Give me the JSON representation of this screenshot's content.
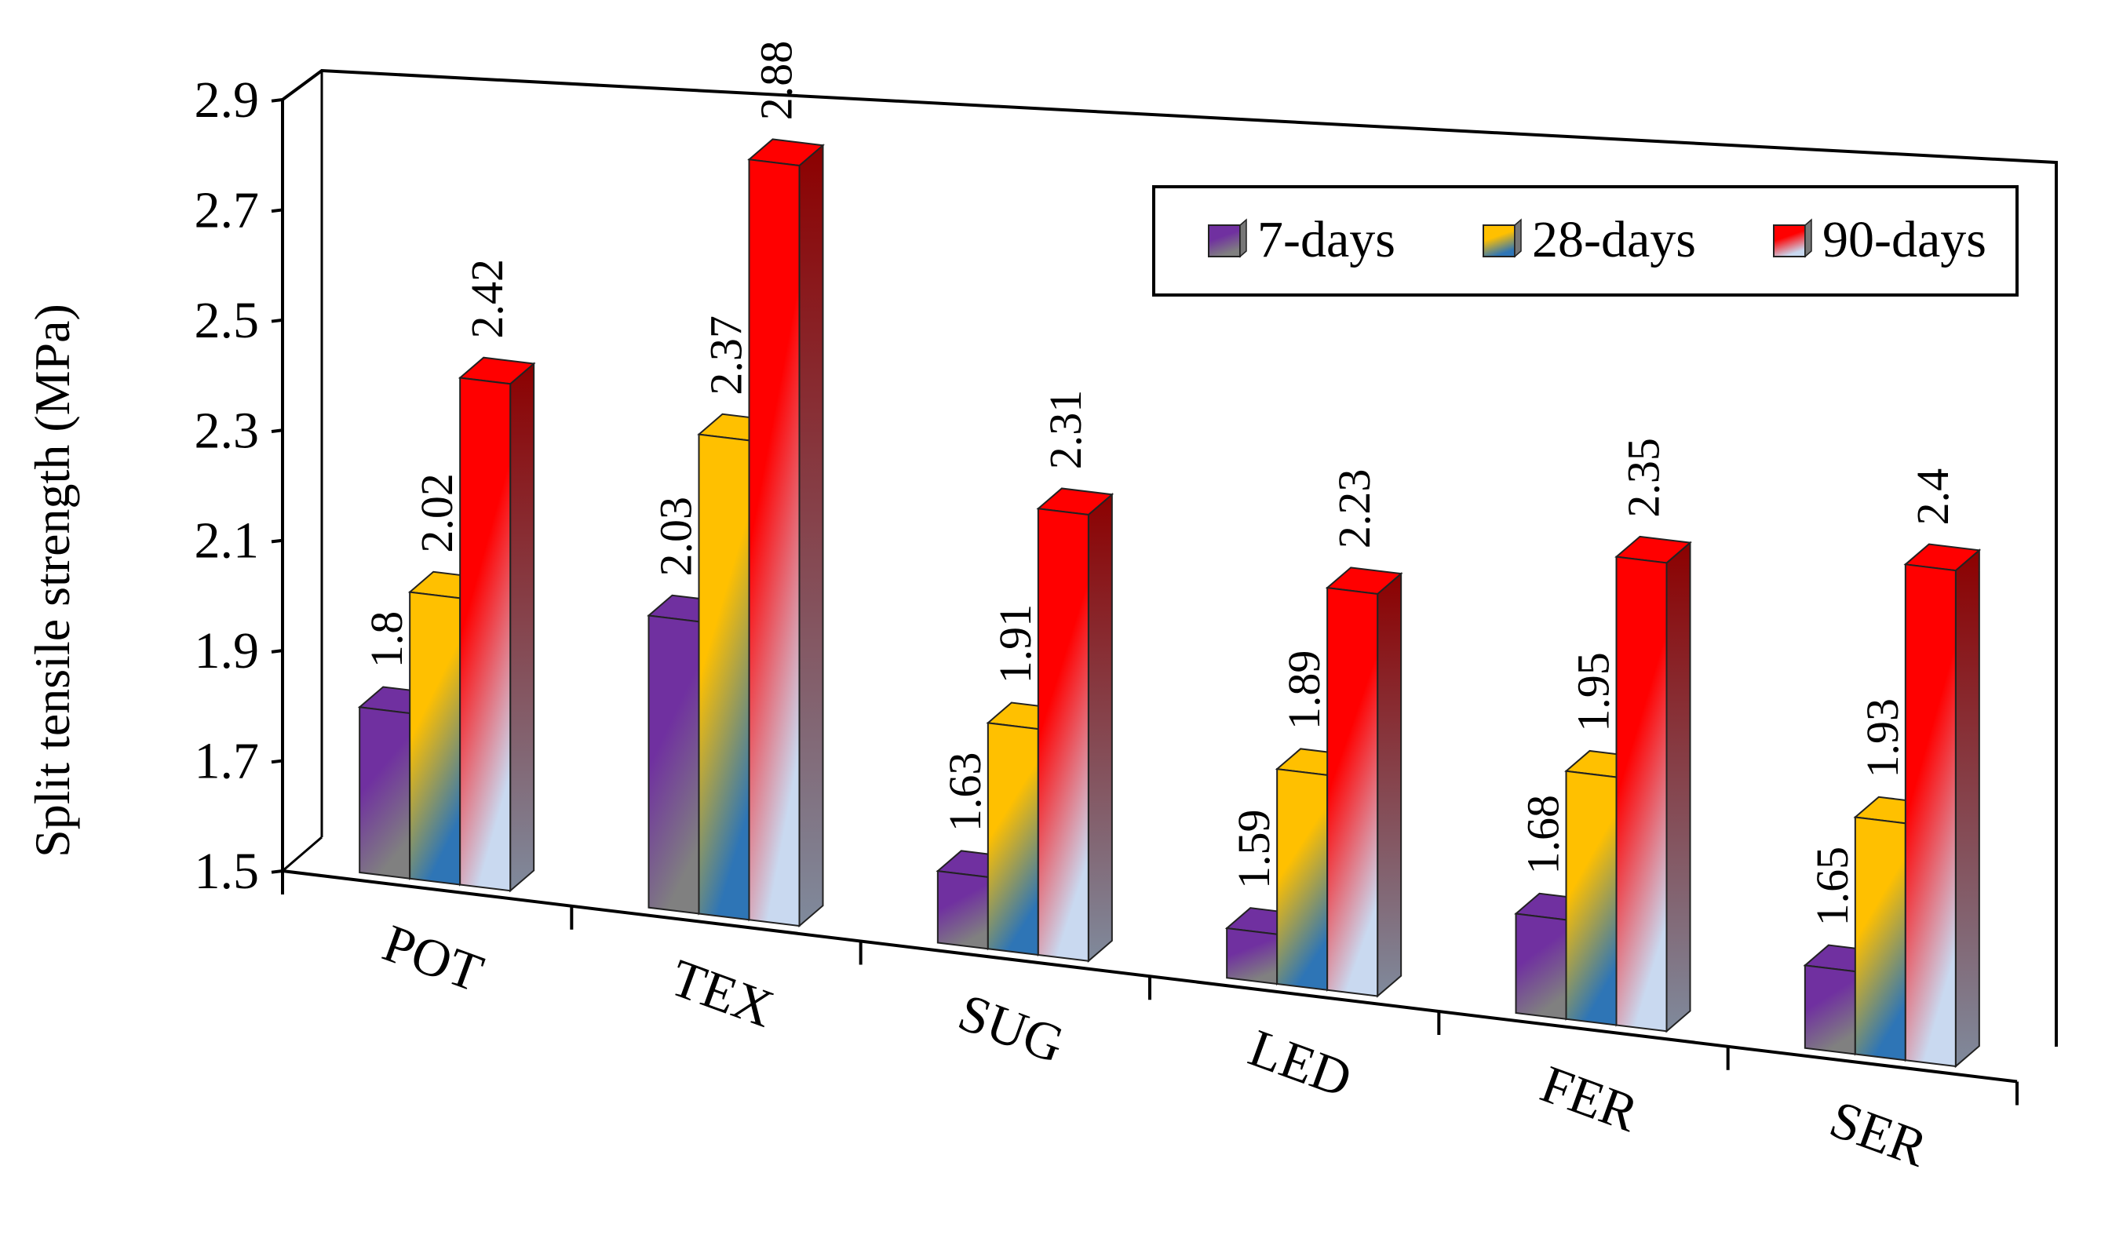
{
  "chart_data": {
    "type": "bar",
    "title": "",
    "xlabel": "",
    "ylabel": "Split tensile strength (MPa)",
    "ylim": [
      1.5,
      2.9
    ],
    "yticks": [
      "1.5",
      "1.7",
      "1.9",
      "2.1",
      "2.3",
      "2.5",
      "2.7",
      "2.9"
    ],
    "categories": [
      "POT",
      "TEX",
      "SUG",
      "LED",
      "FER",
      "SER"
    ],
    "series": [
      {
        "name": "7-days",
        "values": [
          1.8,
          2.03,
          1.63,
          1.59,
          1.68,
          1.65
        ],
        "labels": [
          "1.8",
          "2.03",
          "1.63",
          "1.59",
          "1.68",
          "1.65"
        ],
        "colors": [
          "#7030a0",
          "#808080"
        ]
      },
      {
        "name": "28-days",
        "values": [
          2.02,
          2.37,
          1.91,
          1.89,
          1.95,
          1.93
        ],
        "labels": [
          "2.02",
          "2.37",
          "1.91",
          "1.89",
          "1.95",
          "1.93"
        ],
        "colors": [
          "#ffc000",
          "#2e75b6"
        ]
      },
      {
        "name": "90-days",
        "values": [
          2.42,
          2.88,
          2.31,
          2.23,
          2.35,
          2.4
        ],
        "labels": [
          "2.42",
          "2.88",
          "2.31",
          "2.23",
          "2.35",
          "2.4"
        ],
        "colors": [
          "#ff0000",
          "#c9d9f0"
        ]
      }
    ],
    "legend_position": "top-right",
    "style": "3d-clustered-column"
  }
}
